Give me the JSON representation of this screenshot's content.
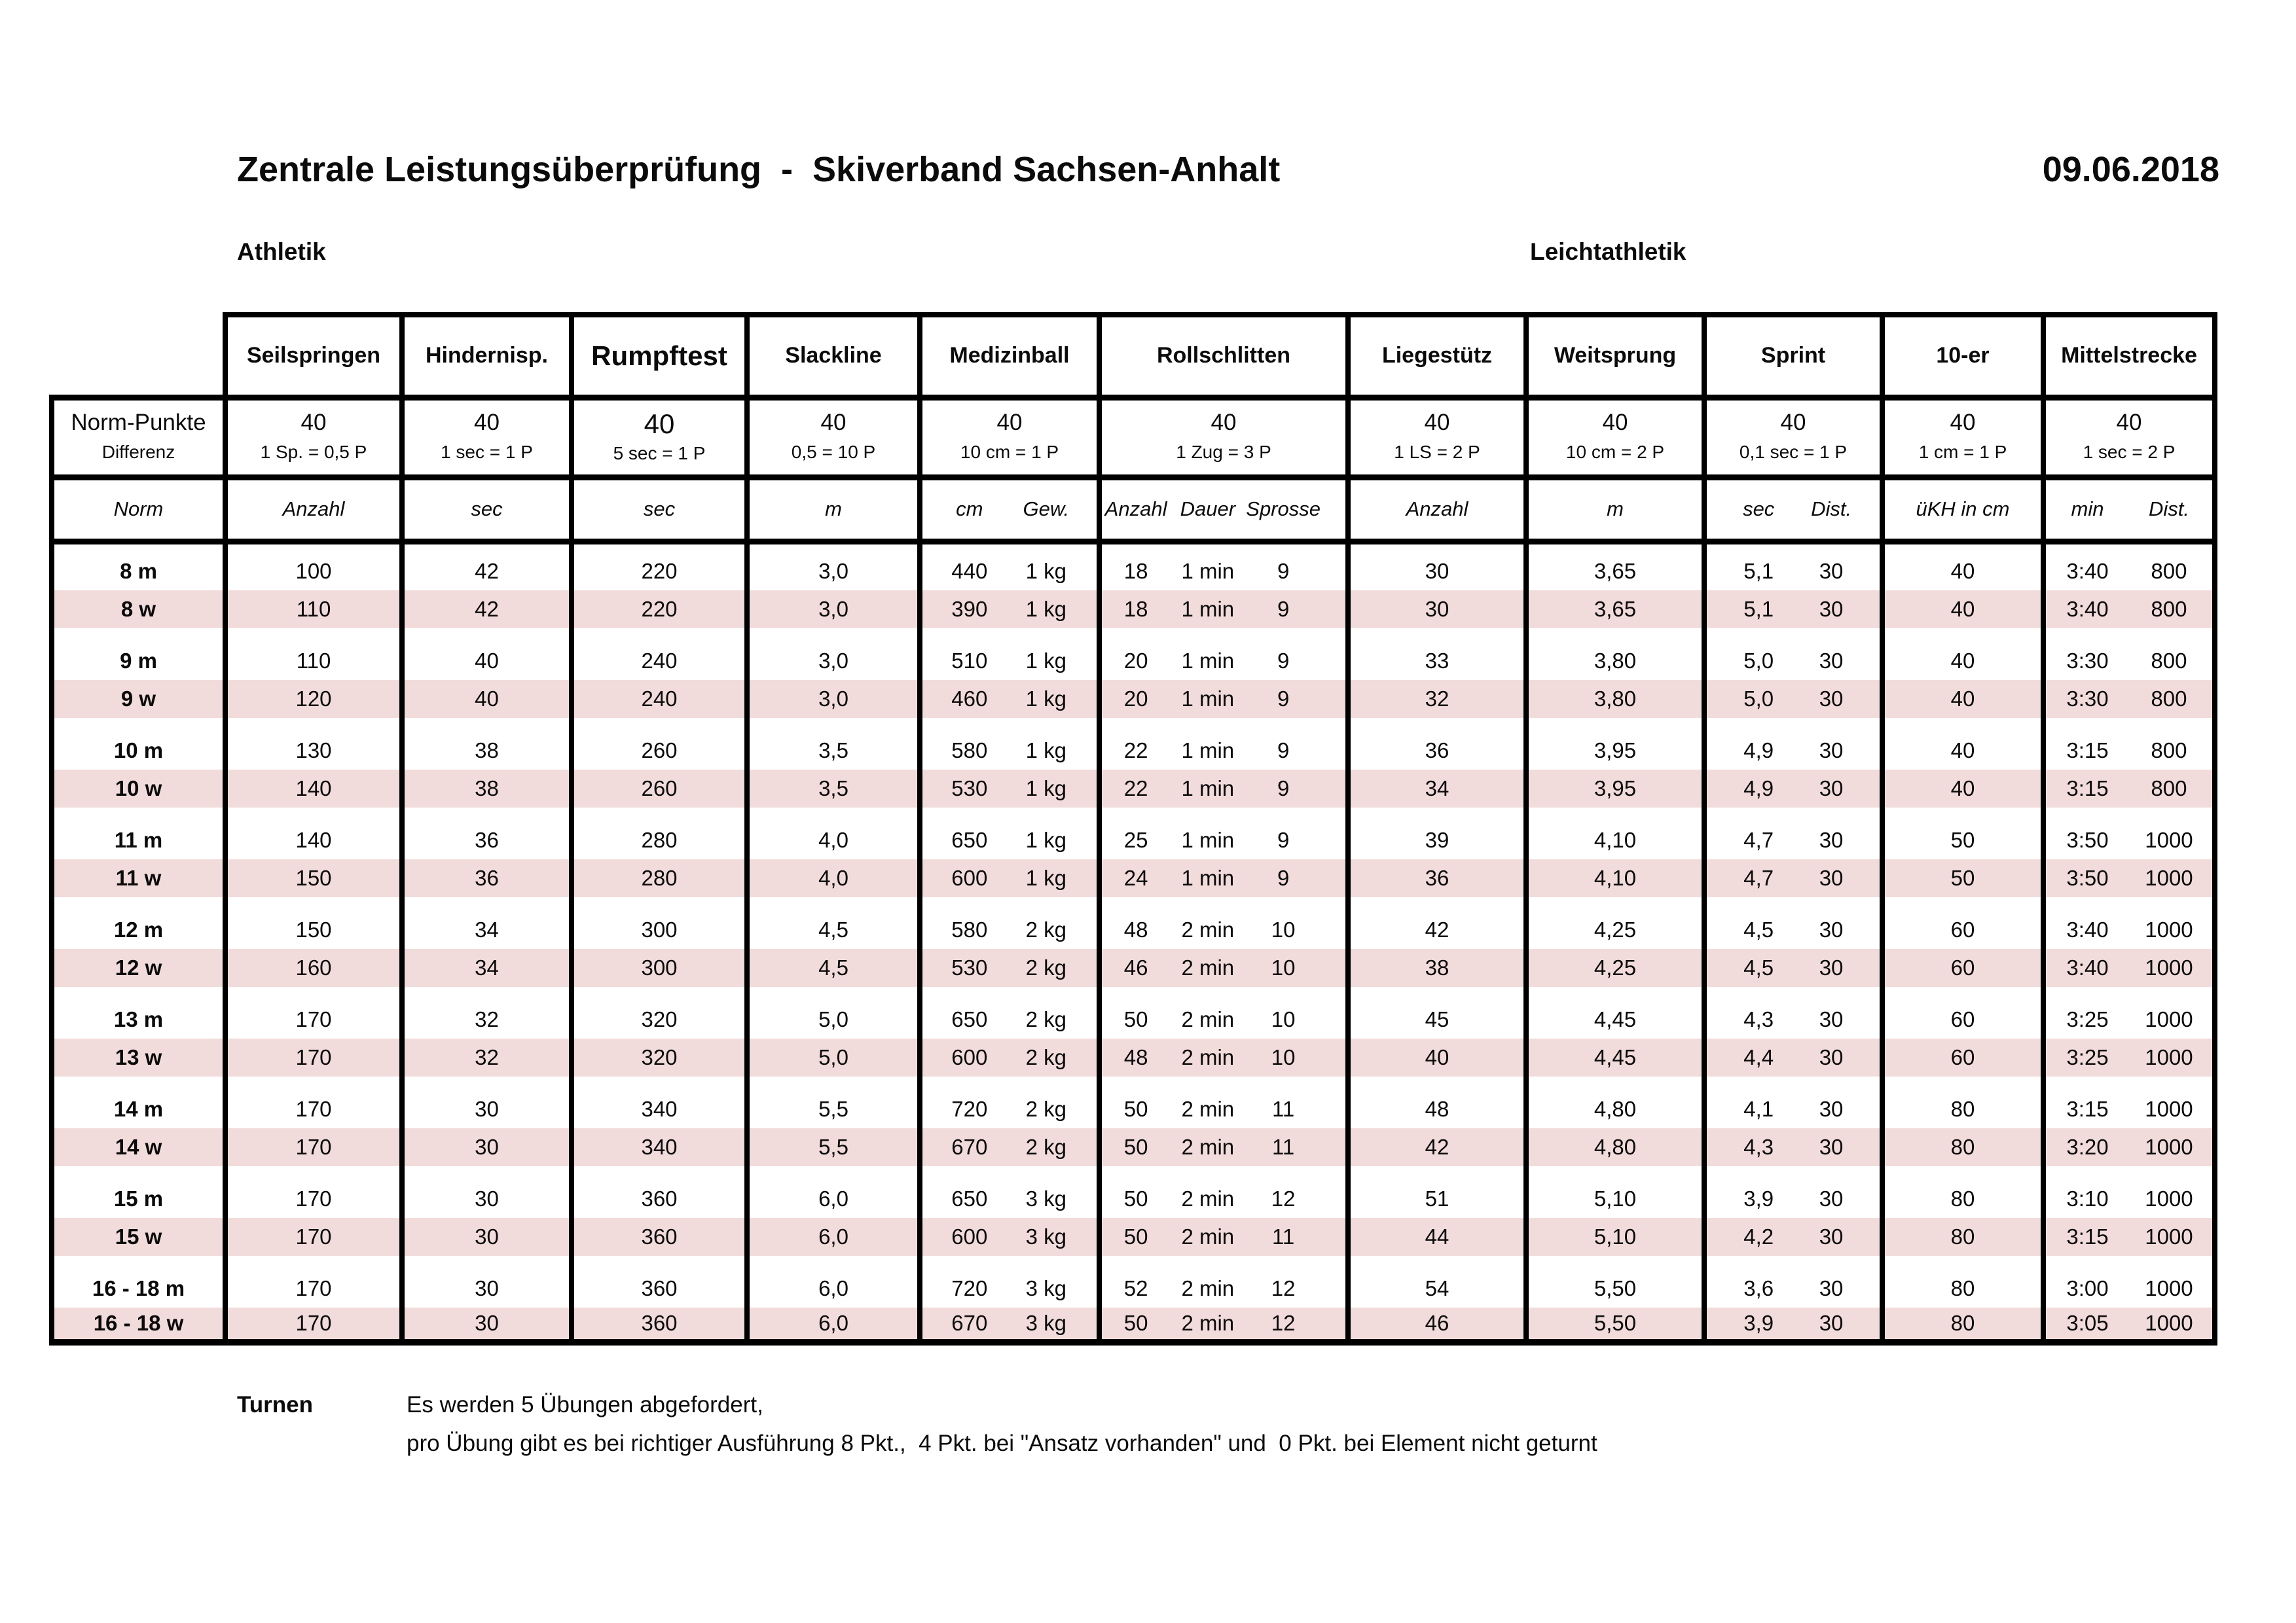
{
  "page": {
    "title": "Zentrale Leistungsüberprüfung  -  Skiverband Sachsen-Anhalt",
    "date": "09.06.2018",
    "section_left": "Athletik",
    "section_right": "Leichtathletik"
  },
  "colors": {
    "row_highlight": "#f2dcdb",
    "border": "#000000",
    "text": "#0b0b0b"
  },
  "table": {
    "corner": {
      "norm_points_label": "Norm-Punkte",
      "difference_label": "Differenz",
      "norm_label": "Norm"
    },
    "columns": [
      {
        "label": "Seilspringen",
        "norm_points": "40",
        "difference": "1 Sp. = 0,5 P",
        "units": [
          "Anzahl"
        ]
      },
      {
        "label": "Hindernisp.",
        "norm_points": "40",
        "difference": "1 sec = 1 P",
        "units": [
          "sec"
        ]
      },
      {
        "label": "Rumpftest",
        "norm_points": "40",
        "difference": "5 sec = 1 P",
        "units": [
          "sec"
        ]
      },
      {
        "label": "Slackline",
        "norm_points": "40",
        "difference": "0,5 = 10 P",
        "units": [
          "m"
        ]
      },
      {
        "label": "Medizinball",
        "norm_points": "40",
        "difference": "10 cm = 1 P",
        "units": [
          "cm",
          "Gew."
        ]
      },
      {
        "label": "Rollschlitten",
        "norm_points": "40",
        "difference": "1 Zug = 3 P",
        "units": [
          "Anzahl",
          "Dauer",
          "Sprosse"
        ]
      },
      {
        "label": "Liegestütz",
        "norm_points": "40",
        "difference": "1 LS = 2 P",
        "units": [
          "Anzahl"
        ]
      },
      {
        "label": "Weitsprung",
        "norm_points": "40",
        "difference": "10 cm = 2 P",
        "units": [
          "m"
        ]
      },
      {
        "label": "Sprint",
        "norm_points": "40",
        "difference": "0,1 sec = 1 P",
        "units": [
          "sec",
          "Dist."
        ]
      },
      {
        "label": "10-er",
        "norm_points": "40",
        "difference": "1 cm = 1 P",
        "units": [
          "üKH in cm"
        ]
      },
      {
        "label": "Mittelstrecke",
        "norm_points": "40",
        "difference": "1 sec = 2 P",
        "units": [
          "min",
          "Dist."
        ]
      }
    ],
    "rows": [
      {
        "label": "8 m",
        "kind": "m",
        "cells": [
          [
            "100"
          ],
          [
            "42"
          ],
          [
            "220"
          ],
          [
            "3,0"
          ],
          [
            "440",
            "1 kg"
          ],
          [
            "18",
            "1 min",
            "9"
          ],
          [
            "30"
          ],
          [
            "3,65"
          ],
          [
            "5,1",
            "30"
          ],
          [
            "40"
          ],
          [
            "3:40",
            "800"
          ]
        ]
      },
      {
        "label": "8 w",
        "kind": "w",
        "cells": [
          [
            "110"
          ],
          [
            "42"
          ],
          [
            "220"
          ],
          [
            "3,0"
          ],
          [
            "390",
            "1 kg"
          ],
          [
            "18",
            "1 min",
            "9"
          ],
          [
            "30"
          ],
          [
            "3,65"
          ],
          [
            "5,1",
            "30"
          ],
          [
            "40"
          ],
          [
            "3:40",
            "800"
          ]
        ]
      },
      {
        "label": "9 m",
        "kind": "m",
        "cells": [
          [
            "110"
          ],
          [
            "40"
          ],
          [
            "240"
          ],
          [
            "3,0"
          ],
          [
            "510",
            "1 kg"
          ],
          [
            "20",
            "1 min",
            "9"
          ],
          [
            "33"
          ],
          [
            "3,80"
          ],
          [
            "5,0",
            "30"
          ],
          [
            "40"
          ],
          [
            "3:30",
            "800"
          ]
        ]
      },
      {
        "label": "9 w",
        "kind": "w",
        "cells": [
          [
            "120"
          ],
          [
            "40"
          ],
          [
            "240"
          ],
          [
            "3,0"
          ],
          [
            "460",
            "1 kg"
          ],
          [
            "20",
            "1 min",
            "9"
          ],
          [
            "32"
          ],
          [
            "3,80"
          ],
          [
            "5,0",
            "30"
          ],
          [
            "40"
          ],
          [
            "3:30",
            "800"
          ]
        ]
      },
      {
        "label": "10 m",
        "kind": "m",
        "cells": [
          [
            "130"
          ],
          [
            "38"
          ],
          [
            "260"
          ],
          [
            "3,5"
          ],
          [
            "580",
            "1 kg"
          ],
          [
            "22",
            "1 min",
            "9"
          ],
          [
            "36"
          ],
          [
            "3,95"
          ],
          [
            "4,9",
            "30"
          ],
          [
            "40"
          ],
          [
            "3:15",
            "800"
          ]
        ]
      },
      {
        "label": "10 w",
        "kind": "w",
        "cells": [
          [
            "140"
          ],
          [
            "38"
          ],
          [
            "260"
          ],
          [
            "3,5"
          ],
          [
            "530",
            "1 kg"
          ],
          [
            "22",
            "1 min",
            "9"
          ],
          [
            "34"
          ],
          [
            "3,95"
          ],
          [
            "4,9",
            "30"
          ],
          [
            "40"
          ],
          [
            "3:15",
            "800"
          ]
        ]
      },
      {
        "label": "11 m",
        "kind": "m",
        "cells": [
          [
            "140"
          ],
          [
            "36"
          ],
          [
            "280"
          ],
          [
            "4,0"
          ],
          [
            "650",
            "1 kg"
          ],
          [
            "25",
            "1 min",
            "9"
          ],
          [
            "39"
          ],
          [
            "4,10"
          ],
          [
            "4,7",
            "30"
          ],
          [
            "50"
          ],
          [
            "3:50",
            "1000"
          ]
        ]
      },
      {
        "label": "11 w",
        "kind": "w",
        "cells": [
          [
            "150"
          ],
          [
            "36"
          ],
          [
            "280"
          ],
          [
            "4,0"
          ],
          [
            "600",
            "1 kg"
          ],
          [
            "24",
            "1 min",
            "9"
          ],
          [
            "36"
          ],
          [
            "4,10"
          ],
          [
            "4,7",
            "30"
          ],
          [
            "50"
          ],
          [
            "3:50",
            "1000"
          ]
        ]
      },
      {
        "label": "12 m",
        "kind": "m",
        "cells": [
          [
            "150"
          ],
          [
            "34"
          ],
          [
            "300"
          ],
          [
            "4,5"
          ],
          [
            "580",
            "2 kg"
          ],
          [
            "48",
            "2 min",
            "10"
          ],
          [
            "42"
          ],
          [
            "4,25"
          ],
          [
            "4,5",
            "30"
          ],
          [
            "60"
          ],
          [
            "3:40",
            "1000"
          ]
        ]
      },
      {
        "label": "12 w",
        "kind": "w",
        "cells": [
          [
            "160"
          ],
          [
            "34"
          ],
          [
            "300"
          ],
          [
            "4,5"
          ],
          [
            "530",
            "2 kg"
          ],
          [
            "46",
            "2 min",
            "10"
          ],
          [
            "38"
          ],
          [
            "4,25"
          ],
          [
            "4,5",
            "30"
          ],
          [
            "60"
          ],
          [
            "3:40",
            "1000"
          ]
        ]
      },
      {
        "label": "13 m",
        "kind": "m",
        "cells": [
          [
            "170"
          ],
          [
            "32"
          ],
          [
            "320"
          ],
          [
            "5,0"
          ],
          [
            "650",
            "2 kg"
          ],
          [
            "50",
            "2 min",
            "10"
          ],
          [
            "45"
          ],
          [
            "4,45"
          ],
          [
            "4,3",
            "30"
          ],
          [
            "60"
          ],
          [
            "3:25",
            "1000"
          ]
        ]
      },
      {
        "label": "13 w",
        "kind": "w",
        "cells": [
          [
            "170"
          ],
          [
            "32"
          ],
          [
            "320"
          ],
          [
            "5,0"
          ],
          [
            "600",
            "2 kg"
          ],
          [
            "48",
            "2 min",
            "10"
          ],
          [
            "40"
          ],
          [
            "4,45"
          ],
          [
            "4,4",
            "30"
          ],
          [
            "60"
          ],
          [
            "3:25",
            "1000"
          ]
        ]
      },
      {
        "label": "14 m",
        "kind": "m",
        "cells": [
          [
            "170"
          ],
          [
            "30"
          ],
          [
            "340"
          ],
          [
            "5,5"
          ],
          [
            "720",
            "2 kg"
          ],
          [
            "50",
            "2 min",
            "11"
          ],
          [
            "48"
          ],
          [
            "4,80"
          ],
          [
            "4,1",
            "30"
          ],
          [
            "80"
          ],
          [
            "3:15",
            "1000"
          ]
        ]
      },
      {
        "label": "14 w",
        "kind": "w",
        "cells": [
          [
            "170"
          ],
          [
            "30"
          ],
          [
            "340"
          ],
          [
            "5,5"
          ],
          [
            "670",
            "2 kg"
          ],
          [
            "50",
            "2 min",
            "11"
          ],
          [
            "42"
          ],
          [
            "4,80"
          ],
          [
            "4,3",
            "30"
          ],
          [
            "80"
          ],
          [
            "3:20",
            "1000"
          ]
        ]
      },
      {
        "label": "15 m",
        "kind": "m",
        "cells": [
          [
            "170"
          ],
          [
            "30"
          ],
          [
            "360"
          ],
          [
            "6,0"
          ],
          [
            "650",
            "3 kg"
          ],
          [
            "50",
            "2 min",
            "12"
          ],
          [
            "51"
          ],
          [
            "5,10"
          ],
          [
            "3,9",
            "30"
          ],
          [
            "80"
          ],
          [
            "3:10",
            "1000"
          ]
        ]
      },
      {
        "label": "15 w",
        "kind": "w",
        "cells": [
          [
            "170"
          ],
          [
            "30"
          ],
          [
            "360"
          ],
          [
            "6,0"
          ],
          [
            "600",
            "3 kg"
          ],
          [
            "50",
            "2 min",
            "11"
          ],
          [
            "44"
          ],
          [
            "5,10"
          ],
          [
            "4,2",
            "30"
          ],
          [
            "80"
          ],
          [
            "3:15",
            "1000"
          ]
        ]
      },
      {
        "label": "16 - 18 m",
        "kind": "m",
        "cells": [
          [
            "170"
          ],
          [
            "30"
          ],
          [
            "360"
          ],
          [
            "6,0"
          ],
          [
            "720",
            "3 kg"
          ],
          [
            "52",
            "2 min",
            "12"
          ],
          [
            "54"
          ],
          [
            "5,50"
          ],
          [
            "3,6",
            "30"
          ],
          [
            "80"
          ],
          [
            "3:00",
            "1000"
          ]
        ]
      },
      {
        "label": "16 - 18 w",
        "kind": "w",
        "cells": [
          [
            "170"
          ],
          [
            "30"
          ],
          [
            "360"
          ],
          [
            "6,0"
          ],
          [
            "670",
            "3 kg"
          ],
          [
            "50",
            "2 min",
            "12"
          ],
          [
            "46"
          ],
          [
            "5,50"
          ],
          [
            "3,9",
            "30"
          ],
          [
            "80"
          ],
          [
            "3:05",
            "1000"
          ]
        ]
      }
    ]
  },
  "footer": {
    "label": "Turnen",
    "line1": "Es werden 5 Übungen abgefordert,",
    "line2": "pro Übung gibt es bei richtiger Ausführung 8 Pkt.,  4 Pkt. bei \"Ansatz vorhanden\" und  0 Pkt. bei Element nicht geturnt"
  }
}
